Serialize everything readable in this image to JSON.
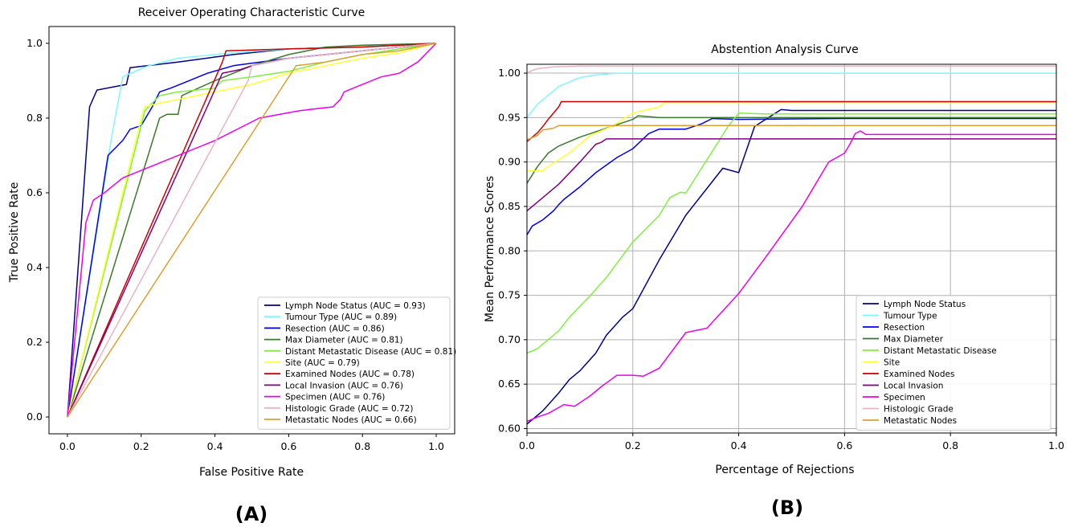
{
  "chart_data": [
    {
      "type": "line",
      "title": "Receiver Operating Characteristic Curve",
      "xlabel": "False Positive Rate",
      "ylabel": "True Positive Rate",
      "xlim": [
        -0.05,
        1.05
      ],
      "ylim": [
        -0.045,
        1.045
      ],
      "xticks": [
        "0.0",
        "0.2",
        "0.4",
        "0.6",
        "0.8",
        "1.0"
      ],
      "yticks": [
        "0.0",
        "0.2",
        "0.4",
        "0.6",
        "0.8",
        "1.0"
      ],
      "grid": false,
      "legend_position": "bottom-right",
      "panel_label": "(A)",
      "series": [
        {
          "name": "Lymph Node Status (AUC = 0.93)",
          "color": "#00008b",
          "x": [
            0,
            0.06,
            0.08,
            0.16,
            0.17,
            0.3,
            0.45,
            0.6,
            0.75,
            0.9,
            1.0
          ],
          "y": [
            0,
            0.83,
            0.875,
            0.89,
            0.935,
            0.95,
            0.97,
            0.985,
            0.99,
            0.995,
            1.0
          ]
        },
        {
          "name": "Tumour Type (AUC = 0.89)",
          "color": "#7ff7ff",
          "x": [
            0,
            0.12,
            0.15,
            0.16,
            0.22,
            0.3,
            0.45,
            0.6,
            0.75,
            0.9,
            1.0
          ],
          "y": [
            0,
            0.75,
            0.91,
            0.915,
            0.94,
            0.96,
            0.975,
            0.985,
            0.99,
            0.995,
            1.0
          ]
        },
        {
          "name": "Resection (AUC = 0.86)",
          "color": "#0000ee",
          "x": [
            0,
            0.11,
            0.15,
            0.17,
            0.2,
            0.23,
            0.25,
            0.28,
            0.33,
            0.38,
            0.45,
            0.6,
            0.8,
            1.0
          ],
          "y": [
            0,
            0.7,
            0.74,
            0.77,
            0.78,
            0.83,
            0.87,
            0.88,
            0.9,
            0.92,
            0.94,
            0.96,
            0.98,
            1.0
          ]
        },
        {
          "name": "Max Diameter (AUC = 0.81)",
          "color": "#3a7a2a",
          "x": [
            0,
            0.25,
            0.27,
            0.3,
            0.31,
            0.4,
            0.5,
            0.6,
            0.7,
            0.8,
            1.0
          ],
          "y": [
            0,
            0.8,
            0.81,
            0.81,
            0.86,
            0.9,
            0.94,
            0.97,
            0.99,
            0.995,
            1.0
          ]
        },
        {
          "name": "Distant Metastatic Disease (AUC = 0.81)",
          "color": "#80f040",
          "x": [
            0,
            0.21,
            0.23,
            0.25,
            0.3,
            0.4,
            0.42,
            0.5,
            0.6,
            0.7,
            0.8,
            0.9,
            1.0
          ],
          "y": [
            0,
            0.82,
            0.84,
            0.86,
            0.87,
            0.88,
            0.9,
            0.91,
            0.925,
            0.95,
            0.97,
            0.985,
            1.0
          ]
        },
        {
          "name": "Site (AUC = 0.79)",
          "color": "#ffff33",
          "x": [
            0,
            0.2,
            0.21,
            0.25,
            0.3,
            0.35,
            0.4,
            0.5,
            0.6,
            0.7,
            0.8,
            0.9,
            1.0
          ],
          "y": [
            0,
            0.8,
            0.83,
            0.84,
            0.85,
            0.86,
            0.87,
            0.89,
            0.92,
            0.94,
            0.96,
            0.975,
            1.0
          ]
        },
        {
          "name": "Examined Nodes (AUC = 0.78)",
          "color": "#cc0000",
          "x": [
            0,
            0.42,
            0.43,
            0.6,
            0.8,
            1.0
          ],
          "y": [
            0,
            0.95,
            0.98,
            0.985,
            0.99,
            1.0
          ]
        },
        {
          "name": "Local Invasion (AUC = 0.76)",
          "color": "#800080",
          "x": [
            0,
            0.42,
            0.47,
            0.5,
            0.6,
            0.7,
            0.8,
            0.9,
            1.0
          ],
          "y": [
            0,
            0.92,
            0.93,
            0.94,
            0.96,
            0.97,
            0.98,
            0.99,
            1.0
          ]
        },
        {
          "name": "Specimen (AUC = 0.76)",
          "color": "#ee00ee",
          "x": [
            0,
            0.05,
            0.07,
            0.1,
            0.15,
            0.25,
            0.4,
            0.52,
            0.63,
            0.72,
            0.74,
            0.75,
            0.8,
            0.85,
            0.9,
            0.95,
            1.0
          ],
          "y": [
            0,
            0.52,
            0.58,
            0.6,
            0.64,
            0.68,
            0.74,
            0.8,
            0.82,
            0.83,
            0.85,
            0.87,
            0.89,
            0.91,
            0.92,
            0.95,
            1.0
          ]
        },
        {
          "name": "Histologic Grade (AUC = 0.72)",
          "color": "#e8b4c0",
          "x": [
            0,
            0.49,
            0.5,
            0.6,
            0.7,
            0.8,
            0.9,
            1.0
          ],
          "y": [
            0,
            0.9,
            0.94,
            0.96,
            0.97,
            0.98,
            0.99,
            1.0
          ]
        },
        {
          "name": "Metastatic Nodes (AUC = 0.66)",
          "color": "#dda030",
          "x": [
            0,
            0.62,
            0.7,
            0.8,
            0.9,
            1.0
          ],
          "y": [
            0,
            0.94,
            0.95,
            0.97,
            0.98,
            1.0
          ]
        }
      ]
    },
    {
      "type": "line",
      "title": "Abstention Analysis Curve",
      "xlabel": "Percentage of Rejections",
      "ylabel": "Mean Performance Scores",
      "xlim": [
        0,
        1.0
      ],
      "ylim": [
        0.595,
        1.01
      ],
      "xticks": [
        "0.0",
        "0.2",
        "0.4",
        "0.6",
        "0.8",
        "1.0"
      ],
      "yticks": [
        "0.60",
        "0.65",
        "0.70",
        "0.75",
        "0.80",
        "0.85",
        "0.90",
        "0.95",
        "1.00"
      ],
      "grid": true,
      "legend_position": "bottom-right",
      "panel_label": "(B)",
      "series": [
        {
          "name": "Lymph Node Status",
          "color": "#00008b",
          "x": [
            0,
            0.03,
            0.06,
            0.08,
            0.1,
            0.13,
            0.15,
            0.18,
            0.2,
            0.25,
            0.3,
            0.37,
            0.4,
            0.43,
            0.48,
            0.5,
            0.7,
            1.0
          ],
          "y": [
            0.605,
            0.62,
            0.64,
            0.655,
            0.665,
            0.685,
            0.705,
            0.725,
            0.735,
            0.79,
            0.84,
            0.893,
            0.888,
            0.94,
            0.959,
            0.958,
            0.958,
            0.958
          ]
        },
        {
          "name": "Tumour Type",
          "color": "#7ff7ff",
          "x": [
            0,
            0.02,
            0.04,
            0.06,
            0.08,
            0.1,
            0.13,
            0.17,
            0.3,
            0.6,
            1.0
          ],
          "y": [
            0.95,
            0.965,
            0.975,
            0.985,
            0.99,
            0.995,
            0.998,
            1.0,
            1.0,
            1.0,
            1.0
          ]
        },
        {
          "name": "Resection",
          "color": "#0000ee",
          "x": [
            0,
            0.01,
            0.03,
            0.05,
            0.06,
            0.07,
            0.1,
            0.13,
            0.17,
            0.2,
            0.23,
            0.25,
            0.3,
            0.33,
            0.35,
            0.4,
            0.6,
            1.0
          ],
          "y": [
            0.818,
            0.828,
            0.835,
            0.845,
            0.852,
            0.858,
            0.872,
            0.888,
            0.905,
            0.915,
            0.932,
            0.937,
            0.937,
            0.943,
            0.949,
            0.948,
            0.949,
            0.949
          ]
        },
        {
          "name": "Max Diameter",
          "color": "#3a7a2a",
          "x": [
            0,
            0.02,
            0.04,
            0.06,
            0.1,
            0.15,
            0.2,
            0.21,
            0.25,
            0.3,
            1.0
          ],
          "y": [
            0.876,
            0.895,
            0.91,
            0.918,
            0.928,
            0.938,
            0.948,
            0.952,
            0.95,
            0.95,
            0.95
          ]
        },
        {
          "name": "Distant Metastatic Disease",
          "color": "#80f040",
          "x": [
            0,
            0.02,
            0.05,
            0.06,
            0.08,
            0.12,
            0.15,
            0.2,
            0.25,
            0.27,
            0.29,
            0.3,
            0.38,
            0.4,
            0.45,
            0.5,
            1.0
          ],
          "y": [
            0.685,
            0.69,
            0.705,
            0.71,
            0.725,
            0.75,
            0.77,
            0.81,
            0.84,
            0.86,
            0.866,
            0.865,
            0.94,
            0.955,
            0.954,
            0.954,
            0.954
          ]
        },
        {
          "name": "Site",
          "color": "#ffff33",
          "x": [
            0,
            0.03,
            0.04,
            0.08,
            0.12,
            0.16,
            0.2,
            0.25,
            0.26,
            1.0
          ],
          "y": [
            0.89,
            0.89,
            0.895,
            0.91,
            0.93,
            0.94,
            0.955,
            0.962,
            0.967,
            0.967
          ]
        },
        {
          "name": "Examined Nodes",
          "color": "#cc0000",
          "x": [
            0,
            0.01,
            0.02,
            0.03,
            0.04,
            0.06,
            0.065,
            0.3,
            1.0
          ],
          "y": [
            0.923,
            0.928,
            0.933,
            0.94,
            0.948,
            0.962,
            0.968,
            0.968,
            0.968
          ]
        },
        {
          "name": "Local Invasion",
          "color": "#800080",
          "x": [
            0,
            0.03,
            0.06,
            0.1,
            0.13,
            0.14,
            0.15,
            0.3,
            1.0
          ],
          "y": [
            0.845,
            0.86,
            0.875,
            0.9,
            0.92,
            0.922,
            0.926,
            0.926,
            0.926
          ]
        },
        {
          "name": "Specimen",
          "color": "#ee00ee",
          "x": [
            0,
            0.02,
            0.04,
            0.07,
            0.09,
            0.12,
            0.14,
            0.17,
            0.2,
            0.22,
            0.25,
            0.3,
            0.34,
            0.4,
            0.45,
            0.52,
            0.57,
            0.6,
            0.61,
            0.62,
            0.63,
            0.64,
            0.7,
            1.0
          ],
          "y": [
            0.608,
            0.613,
            0.617,
            0.627,
            0.625,
            0.637,
            0.647,
            0.66,
            0.66,
            0.659,
            0.668,
            0.708,
            0.713,
            0.752,
            0.792,
            0.85,
            0.9,
            0.91,
            0.92,
            0.932,
            0.935,
            0.931,
            0.931,
            0.931
          ]
        },
        {
          "name": "Histologic Grade",
          "color": "#e8b4c0",
          "x": [
            0,
            0.01,
            0.02,
            0.05,
            0.1,
            0.3,
            0.6,
            1.0
          ],
          "y": [
            1.0,
            1.003,
            1.005,
            1.007,
            1.008,
            1.008,
            1.008,
            1.008
          ]
        },
        {
          "name": "Metastatic Nodes",
          "color": "#dda030",
          "x": [
            0,
            0.02,
            0.03,
            0.05,
            0.06,
            0.3,
            1.0
          ],
          "y": [
            0.925,
            0.93,
            0.936,
            0.938,
            0.941,
            0.941,
            0.941
          ]
        }
      ]
    }
  ]
}
